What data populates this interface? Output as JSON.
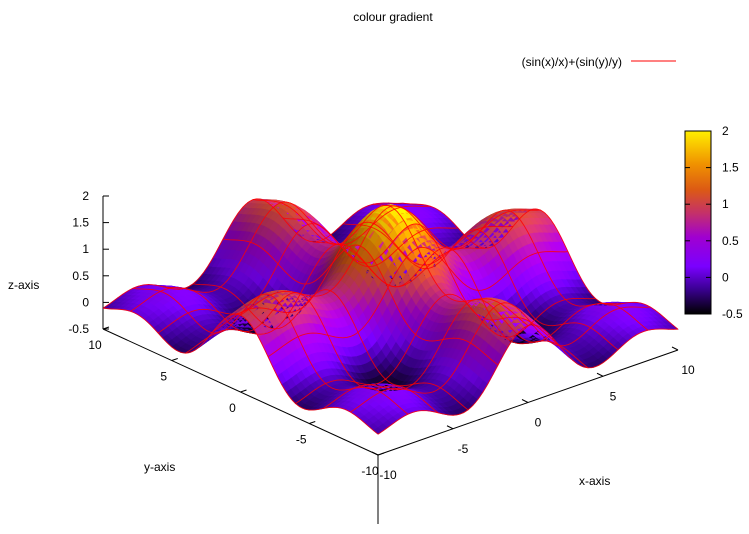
{
  "chart_data": {
    "type": "surface3d",
    "title": "colour gradient",
    "function": "(sin(x)/x)+(sin(y)/y)",
    "legend": {
      "label": "(sin(x)/x)+(sin(y)/y)",
      "line_color": "#ff0000",
      "placement": "top-right"
    },
    "xlabel": "x-axis",
    "ylabel": "y-axis",
    "zlabel": "z-axis",
    "xlim": [
      -10,
      10
    ],
    "ylim": [
      -10,
      10
    ],
    "zlim": [
      -0.5,
      2
    ],
    "x_ticks": [
      "-10",
      "-5",
      "0",
      "5",
      "10"
    ],
    "y_ticks": [
      "-10",
      "-5",
      "0",
      "5",
      "10"
    ],
    "z_ticks": [
      "2",
      "1.5",
      "1",
      "0.5",
      "0",
      "-0.5"
    ],
    "colorbar": {
      "ticks": [
        "2",
        "1.5",
        "1",
        "0.5",
        "0",
        "-0.5"
      ],
      "range": [
        -0.5,
        2
      ],
      "palette": [
        "#000000",
        "#4c00c8",
        "#8b00ff",
        "#c43a66",
        "#e06a1c",
        "#ff9900",
        "#ffd21e",
        "#ffff00"
      ]
    },
    "mesh_color": "#ff0000",
    "grid": false
  }
}
